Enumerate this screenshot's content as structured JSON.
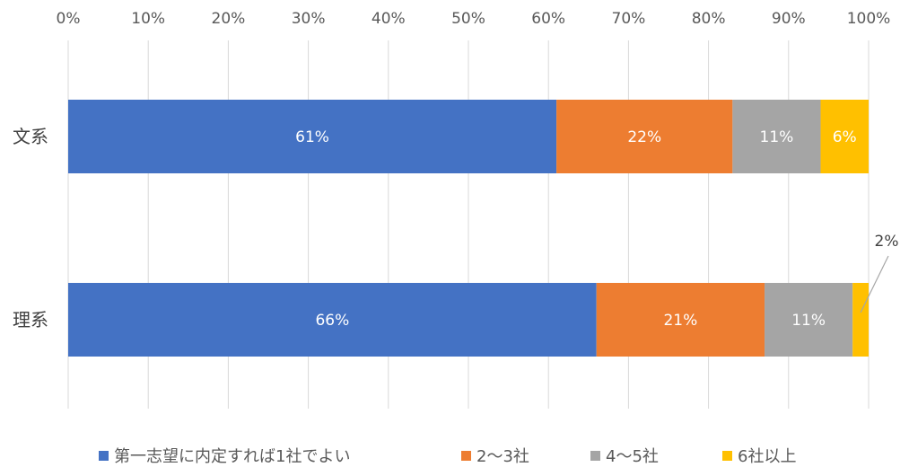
{
  "chart_data": {
    "type": "bar",
    "orientation": "horizontal",
    "stacked": true,
    "percent_stacked": true,
    "categories": [
      "文系",
      "理系"
    ],
    "series": [
      {
        "name": "第一志望に内定すれば1社でよい",
        "values": [
          61,
          66
        ],
        "labels": [
          "61%",
          "66%"
        ],
        "color": "#4472C4"
      },
      {
        "name": "2〜3社",
        "values": [
          22,
          21
        ],
        "labels": [
          "22%",
          "21%"
        ],
        "color": "#ED7D31"
      },
      {
        "name": "4〜5社",
        "values": [
          11,
          11
        ],
        "labels": [
          "11%",
          "11%"
        ],
        "color": "#A5A5A5"
      },
      {
        "name": "6社以上",
        "values": [
          6,
          2
        ],
        "labels": [
          "6%",
          "2%"
        ],
        "color": "#FFC000"
      }
    ],
    "x_ticks": [
      "0%",
      "10%",
      "20%",
      "30%",
      "40%",
      "50%",
      "60%",
      "70%",
      "80%",
      "90%",
      "100%"
    ],
    "xlim": [
      0,
      100
    ],
    "x_axis_position": "top",
    "grid": true,
    "legend": "bottom"
  }
}
